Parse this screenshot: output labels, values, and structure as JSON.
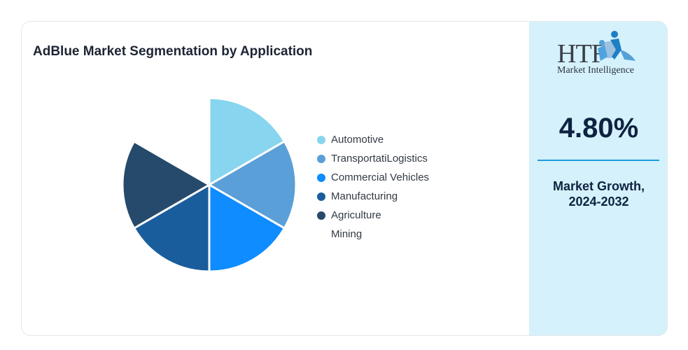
{
  "chart_data": {
    "type": "pie",
    "title": "AdBlue Market Segmentation by Application",
    "categories": [
      "Automotive",
      "TransportatiLogistics",
      "Commercial Vehicles",
      "Manufacturing",
      "Agriculture",
      "Mining"
    ],
    "values": [
      16.67,
      16.67,
      16.67,
      16.67,
      16.67,
      16.67
    ],
    "colors": [
      "#87d5ee",
      "#5a9fd8",
      "#0f8cff",
      "#1a5d9c",
      "#264a6b",
      "#ffffff"
    ],
    "legend_position": "right",
    "start_angle_deg": 0,
    "direction": "clockwise"
  },
  "sidebar": {
    "logo": {
      "text": "HTF",
      "subtitle": "Market Intelligence"
    },
    "growth_value": "4.80%",
    "growth_label_line1": "Market Growth,",
    "growth_label_line2": "2024-2032"
  }
}
